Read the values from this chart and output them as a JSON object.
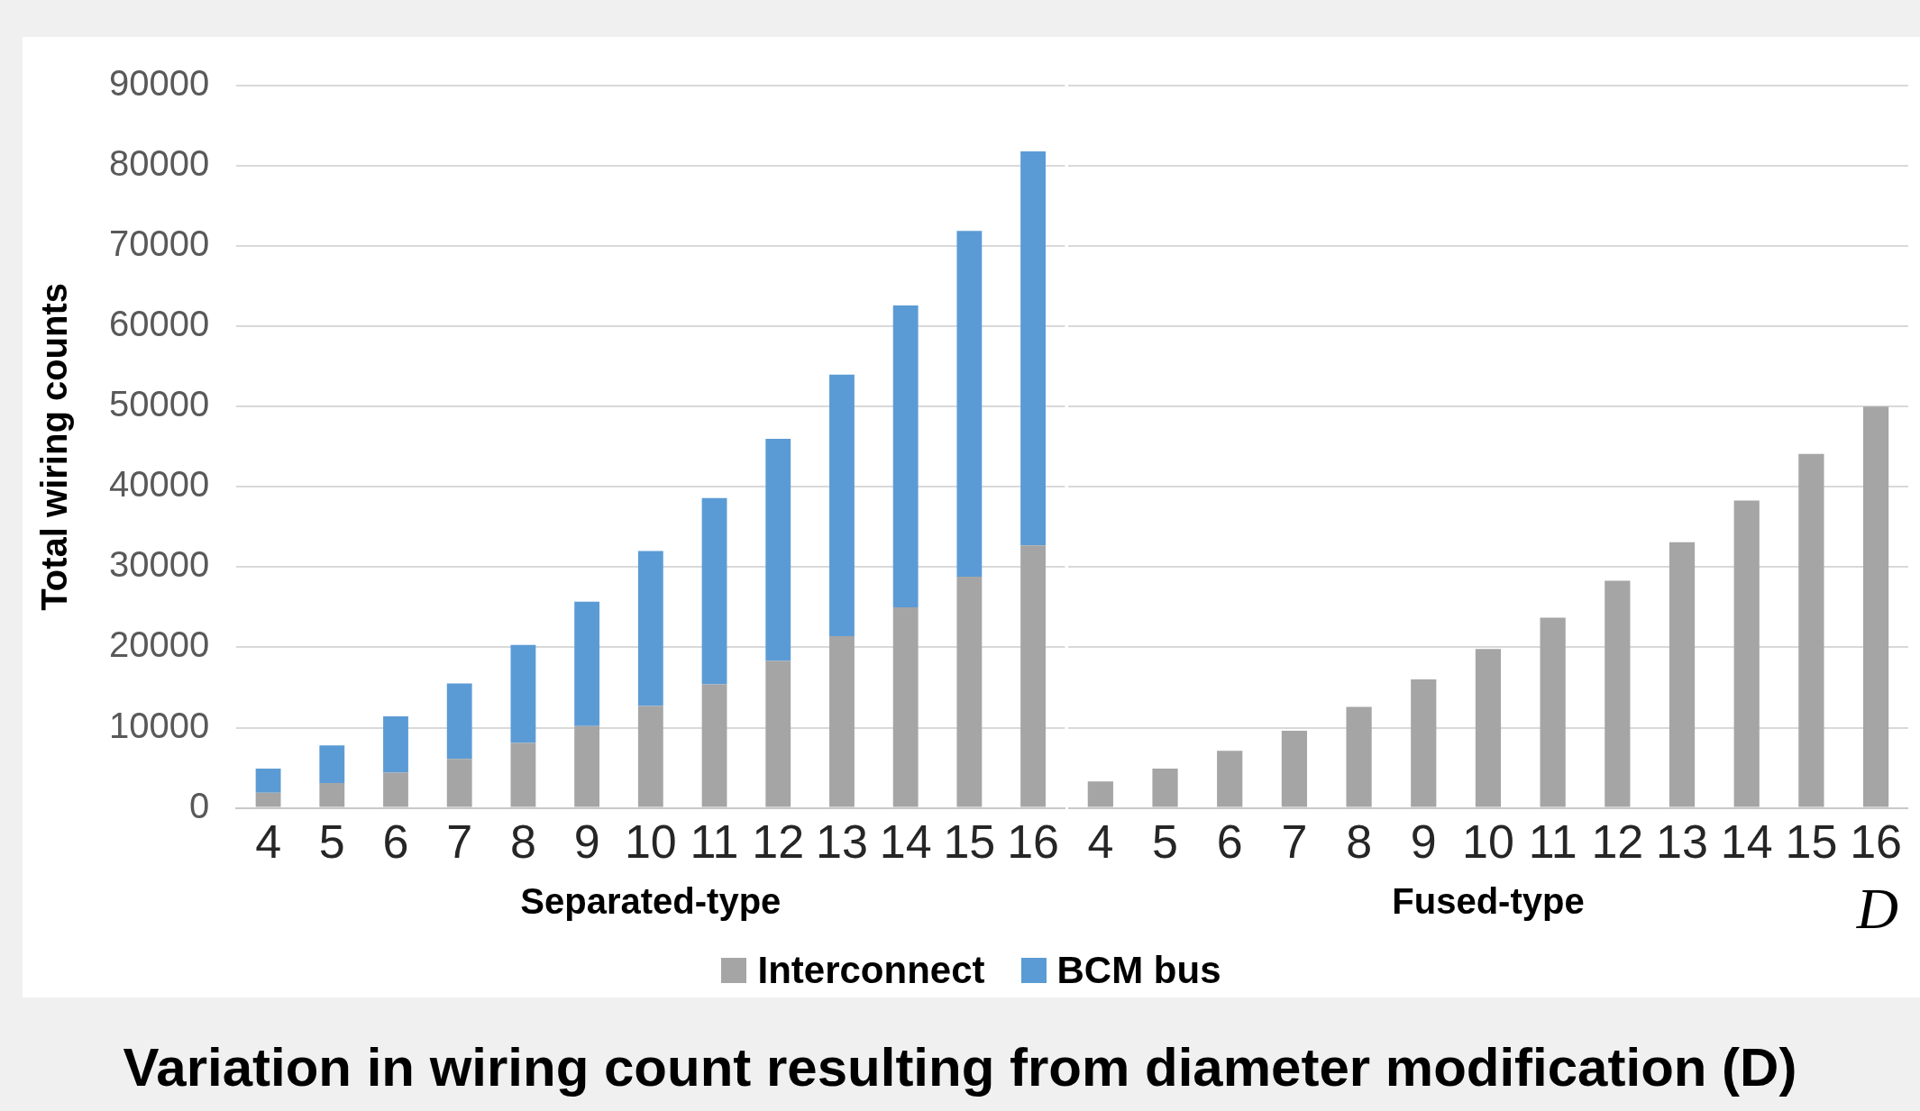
{
  "chart_data": [
    {
      "type": "bar",
      "title": "Variation in wiring count resulting from diameter modification (D)",
      "ylabel": "Total wiring counts",
      "xlabel": "Separated-type",
      "stacked": true,
      "categories": [
        "4",
        "5",
        "6",
        "7",
        "8",
        "9",
        "10",
        "11",
        "12",
        "13",
        "14",
        "15",
        "16"
      ],
      "series": [
        {
          "name": "Interconnect",
          "color": "#a5a5a5",
          "values": [
            1900,
            3100,
            4400,
            6100,
            8100,
            10200,
            12700,
            15400,
            18300,
            21400,
            25000,
            28800,
            32700
          ]
        },
        {
          "name": "BCM bus",
          "color": "#5b9bd5",
          "values": [
            3000,
            4700,
            7000,
            9400,
            12200,
            15500,
            19300,
            23200,
            27700,
            32600,
            37600,
            43100,
            49100
          ]
        }
      ],
      "ylim": [
        0,
        90000
      ],
      "yticks": [
        0,
        10000,
        20000,
        30000,
        40000,
        50000,
        60000,
        70000,
        80000,
        90000
      ],
      "grid": "y",
      "legend": "bottom"
    },
    {
      "type": "bar",
      "xlabel": "Fused-type",
      "annotations": [
        "D"
      ],
      "stacked": true,
      "categories": [
        "4",
        "5",
        "6",
        "7",
        "8",
        "9",
        "10",
        "11",
        "12",
        "13",
        "14",
        "15",
        "16"
      ],
      "series": [
        {
          "name": "Interconnect",
          "color": "#a5a5a5",
          "values": [
            3300,
            4900,
            7100,
            9600,
            12600,
            16000,
            19800,
            23700,
            28300,
            33100,
            38300,
            44100,
            50000
          ]
        }
      ],
      "ylim": [
        0,
        90000
      ],
      "yticks": [
        0,
        10000,
        20000,
        30000,
        40000,
        50000,
        60000,
        70000,
        80000,
        90000
      ],
      "grid": "y",
      "tick_labels": "x",
      "legend": "bottom"
    }
  ]
}
